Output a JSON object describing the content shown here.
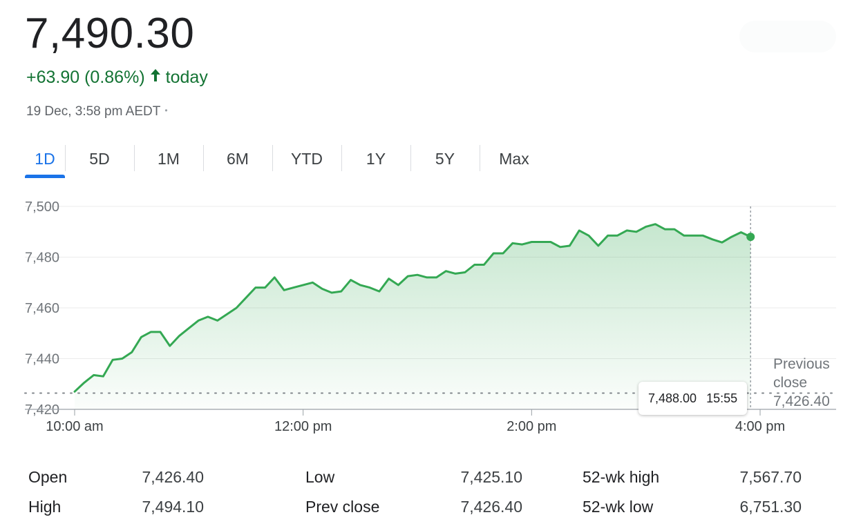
{
  "quote": {
    "price": "7,490.30",
    "change": "+63.90 (0.86%)",
    "arrow_icon": "arrow-up-icon",
    "change_suffix": "today",
    "timestamp": "19 Dec, 3:58 pm AEDT",
    "separator": "•"
  },
  "colors": {
    "up": "#137333",
    "line": "#34a853",
    "accent": "#1a73e8"
  },
  "range_tabs": [
    {
      "label": "1D",
      "active": true
    },
    {
      "label": "5D"
    },
    {
      "label": "1M"
    },
    {
      "label": "6M"
    },
    {
      "label": "YTD"
    },
    {
      "label": "1Y"
    },
    {
      "label": "5Y"
    },
    {
      "label": "Max"
    }
  ],
  "chart_data": {
    "type": "area",
    "x_unit": "time",
    "y_ticks": [
      "7,500",
      "7,480",
      "7,460",
      "7,440",
      "7,420"
    ],
    "x_ticks": [
      "10:00 am",
      "12:00 pm",
      "2:00 pm",
      "4:00 pm"
    ],
    "ylim": [
      7420,
      7500
    ],
    "grid": true,
    "series": [
      {
        "points": [
          [
            "10:00",
            7427.0
          ],
          [
            "10:05",
            7430.5
          ],
          [
            "10:10",
            7433.5
          ],
          [
            "10:15",
            7433.0
          ],
          [
            "10:20",
            7439.5
          ],
          [
            "10:25",
            7440.0
          ],
          [
            "10:30",
            7442.5
          ],
          [
            "10:35",
            7448.5
          ],
          [
            "10:40",
            7450.5
          ],
          [
            "10:45",
            7450.5
          ],
          [
            "10:50",
            7445.0
          ],
          [
            "10:55",
            7449.0
          ],
          [
            "11:00",
            7452.0
          ],
          [
            "11:05",
            7455.0
          ],
          [
            "11:10",
            7456.5
          ],
          [
            "11:15",
            7455.0
          ],
          [
            "11:20",
            7457.5
          ],
          [
            "11:25",
            7460.0
          ],
          [
            "11:30",
            7464.0
          ],
          [
            "11:35",
            7468.0
          ],
          [
            "11:40",
            7468.0
          ],
          [
            "11:45",
            7472.0
          ],
          [
            "11:50",
            7467.0
          ],
          [
            "11:55",
            7468.0
          ],
          [
            "12:00",
            7469.0
          ],
          [
            "12:05",
            7470.0
          ],
          [
            "12:10",
            7467.5
          ],
          [
            "12:15",
            7466.0
          ],
          [
            "12:20",
            7466.5
          ],
          [
            "12:25",
            7471.0
          ],
          [
            "12:30",
            7469.0
          ],
          [
            "12:35",
            7468.0
          ],
          [
            "12:40",
            7466.5
          ],
          [
            "12:45",
            7471.5
          ],
          [
            "12:50",
            7469.0
          ],
          [
            "12:55",
            7472.5
          ],
          [
            "13:00",
            7473.0
          ],
          [
            "13:05",
            7472.0
          ],
          [
            "13:10",
            7472.0
          ],
          [
            "13:15",
            7474.5
          ],
          [
            "13:20",
            7473.5
          ],
          [
            "13:25",
            7474.0
          ],
          [
            "13:30",
            7477.0
          ],
          [
            "13:35",
            7477.0
          ],
          [
            "13:40",
            7481.5
          ],
          [
            "13:45",
            7481.5
          ],
          [
            "13:50",
            7485.5
          ],
          [
            "13:55",
            7485.0
          ],
          [
            "14:00",
            7486.0
          ],
          [
            "14:05",
            7486.0
          ],
          [
            "14:10",
            7486.0
          ],
          [
            "14:15",
            7484.0
          ],
          [
            "14:20",
            7484.5
          ],
          [
            "14:25",
            7490.5
          ],
          [
            "14:30",
            7488.5
          ],
          [
            "14:35",
            7484.5
          ],
          [
            "14:40",
            7488.5
          ],
          [
            "14:45",
            7488.5
          ],
          [
            "14:50",
            7490.5
          ],
          [
            "14:55",
            7490.0
          ],
          [
            "15:00",
            7492.0
          ],
          [
            "15:05",
            7493.0
          ],
          [
            "15:10",
            7491.0
          ],
          [
            "15:15",
            7491.0
          ],
          [
            "15:20",
            7488.5
          ],
          [
            "15:25",
            7488.5
          ],
          [
            "15:30",
            7488.5
          ],
          [
            "15:35",
            7487.0
          ],
          [
            "15:40",
            7485.8
          ],
          [
            "15:45",
            7488.0
          ],
          [
            "15:50",
            7489.8
          ],
          [
            "15:55",
            7488.0
          ]
        ]
      }
    ],
    "previous_close": {
      "label": "Previous close",
      "value": "7,426.40",
      "y": 7426.4
    },
    "hover": {
      "value": "7,488.00",
      "time": "15:55",
      "x": "15:55"
    }
  },
  "stats": [
    [
      {
        "label": "Open",
        "value": "7,426.40"
      },
      {
        "label": "Low",
        "value": "7,425.10"
      },
      {
        "label": "52-wk high",
        "value": "7,567.70"
      }
    ],
    [
      {
        "label": "High",
        "value": "7,494.10"
      },
      {
        "label": "Prev close",
        "value": "7,426.40"
      },
      {
        "label": "52-wk low",
        "value": "6,751.30"
      }
    ]
  ]
}
